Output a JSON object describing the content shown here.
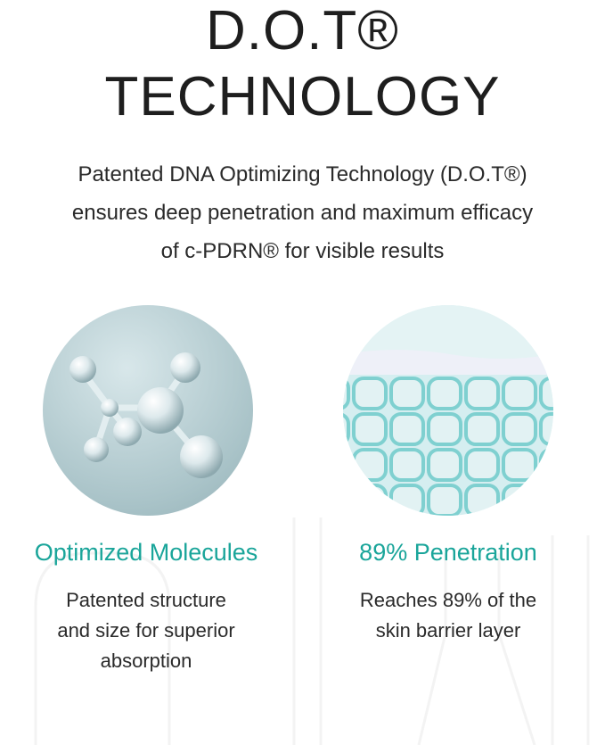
{
  "header": {
    "title_line1": "D.O.T®",
    "title_line2": "TECHNOLOGY",
    "subtitle": [
      "Patented DNA Optimizing Technology (D.O.T®)",
      "ensures deep penetration and maximum efficacy",
      "of c-PDRN® for visible results"
    ]
  },
  "features": [
    {
      "image": "molecule-image",
      "title": "Optimized Molecules",
      "lines": [
        "Patented structure",
        "and size for superior",
        "absorption"
      ]
    },
    {
      "image": "skin-cells-image",
      "title": "89% Penetration",
      "lines": [
        "Reaches 89% of the",
        "skin barrier layer"
      ]
    }
  ],
  "colors": {
    "accent": "#1aa59a",
    "text": "#222222"
  }
}
